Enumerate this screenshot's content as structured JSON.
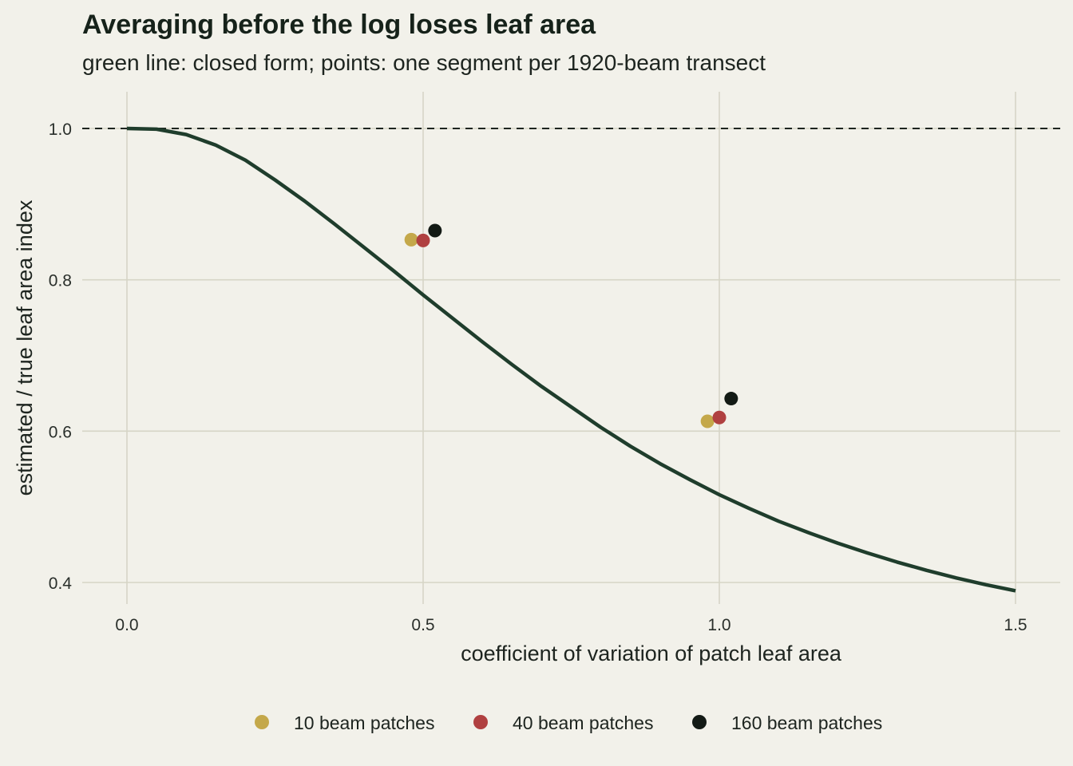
{
  "chart_data": {
    "type": "scatter",
    "title": "Averaging before the log loses leaf area",
    "subtitle": "green line: closed form; points: one segment per 1920-beam transect",
    "xlabel": "coefficient of variation of patch leaf area",
    "ylabel": "estimated / true leaf area index",
    "xlim": [
      -0.07,
      1.58
    ],
    "ylim": [
      0.365,
      1.05
    ],
    "x_ticks": [
      0.0,
      0.5,
      1.0,
      1.5
    ],
    "x_tick_labels": [
      "0.0",
      "0.5",
      "1.0",
      "1.5"
    ],
    "y_ticks": [
      0.4,
      0.6,
      0.8,
      1.0
    ],
    "y_tick_labels": [
      "0.4",
      "0.6",
      "0.8",
      "1.0"
    ],
    "grid": true,
    "reference_line": {
      "y": 1.0,
      "style": "dashed",
      "color": "#1d241f"
    },
    "curve": {
      "color": "#1f3d2c",
      "x": [
        0.0,
        0.05,
        0.1,
        0.15,
        0.2,
        0.25,
        0.3,
        0.35,
        0.4,
        0.45,
        0.5,
        0.55,
        0.6,
        0.65,
        0.7,
        0.75,
        0.8,
        0.85,
        0.9,
        0.95,
        1.0,
        1.05,
        1.1,
        1.15,
        1.2,
        1.25,
        1.3,
        1.35,
        1.4,
        1.45,
        1.5
      ],
      "y": [
        1.0,
        0.999,
        0.992,
        0.978,
        0.958,
        0.932,
        0.904,
        0.874,
        0.843,
        0.812,
        0.78,
        0.749,
        0.718,
        0.688,
        0.659,
        0.632,
        0.605,
        0.58,
        0.557,
        0.536,
        0.516,
        0.498,
        0.481,
        0.466,
        0.452,
        0.439,
        0.427,
        0.416,
        0.406,
        0.397,
        0.389
      ]
    },
    "series": [
      {
        "name": "10 beam patches",
        "color": "#c4a84a",
        "x": [
          0.48,
          0.98
        ],
        "y": [
          0.853,
          0.613
        ]
      },
      {
        "name": "40 beam patches",
        "color": "#b04040",
        "x": [
          0.5,
          1.0
        ],
        "y": [
          0.852,
          0.618
        ]
      },
      {
        "name": "160 beam patches",
        "color": "#131a15",
        "x": [
          0.52,
          1.02
        ],
        "y": [
          0.865,
          0.643
        ]
      }
    ],
    "legend_position": "bottom"
  }
}
